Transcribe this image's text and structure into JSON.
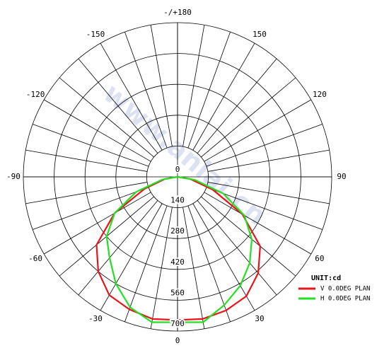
{
  "chart_data": {
    "type": "polar",
    "watermark": "www.anlai.cn",
    "unit_label": "UNIT:cd",
    "rlim": [
      0,
      700
    ],
    "rticks": [
      0,
      140,
      280,
      420,
      560,
      700
    ],
    "angle_ticks": [
      {
        "value": 180,
        "label": "-/+180"
      },
      150,
      120,
      90,
      60,
      30,
      0,
      -30,
      -60,
      -90,
      -120,
      -150
    ],
    "theta": [
      -90,
      -80,
      -70,
      -60,
      -50,
      -40,
      -30,
      -20,
      -10,
      0,
      10,
      20,
      30,
      40,
      50,
      60,
      70,
      80,
      90
    ],
    "series": [
      {
        "name": "V 0.0DEG PLAN",
        "color": "#e8141c",
        "values": [
          0,
          60,
          160,
          330,
          480,
          560,
          620,
          640,
          655,
          650,
          655,
          645,
          625,
          570,
          490,
          340,
          170,
          60,
          0
        ]
      },
      {
        "name": "H 0.0DEG PLAN",
        "color": "#22e022",
        "values": [
          0,
          70,
          200,
          330,
          420,
          480,
          560,
          630,
          670,
          660,
          670,
          620,
          570,
          510,
          440,
          350,
          220,
          80,
          0
        ]
      }
    ]
  }
}
